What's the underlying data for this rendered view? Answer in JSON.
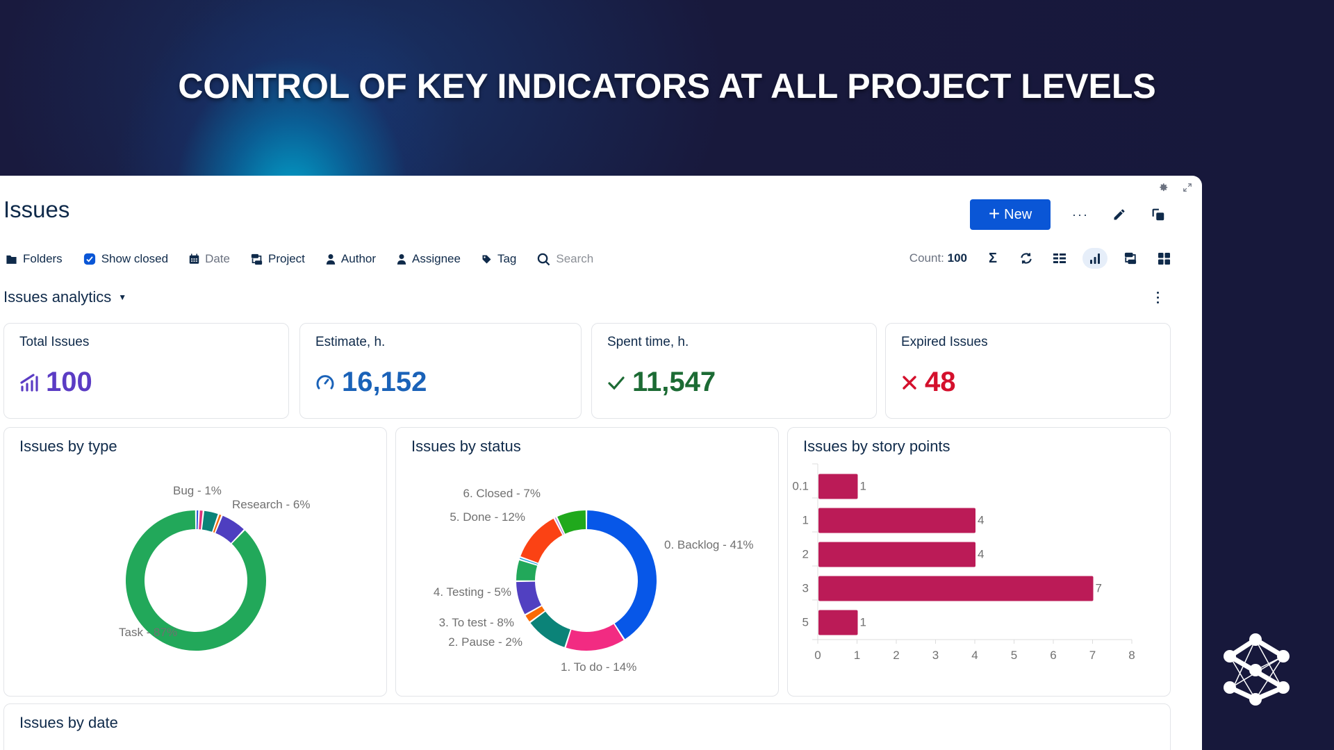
{
  "headline": "CONTROL OF KEY INDICATORS AT ALL PROJECT LEVELS",
  "panel": {
    "title": "Issues",
    "corner_icons": [
      "gear-icon",
      "expand-icon"
    ],
    "new_button": "New",
    "more_label": "···",
    "filters": [
      {
        "label": "Folders",
        "icon": "folder-icon",
        "muted": false
      },
      {
        "label": "Show closed",
        "icon": "checkbox-checked-icon",
        "muted": false,
        "checked": true
      },
      {
        "label": "Date",
        "icon": "calendar-icon",
        "muted": true
      },
      {
        "label": "Project",
        "icon": "project-icon",
        "muted": false
      },
      {
        "label": "Author",
        "icon": "person-icon",
        "muted": false
      },
      {
        "label": "Assignee",
        "icon": "person-icon",
        "muted": false
      },
      {
        "label": "Tag",
        "icon": "tag-icon",
        "muted": false
      }
    ],
    "search_placeholder": "Search",
    "count_label": "Count:",
    "count_value": "100",
    "view_tools": [
      "sum-icon",
      "refresh-icon",
      "list-view-icon",
      "chart-view-icon",
      "board-view-icon",
      "grid-view-icon"
    ],
    "active_view": "chart-view-icon",
    "analytics_label": "Issues analytics"
  },
  "kpis": [
    {
      "title": "Total Issues",
      "value": "100",
      "icon": "trend-bars-icon",
      "color": "#5b3cc4"
    },
    {
      "title": "Estimate, h.",
      "value": "16,152",
      "icon": "gauge-icon",
      "color": "#1a62b8"
    },
    {
      "title": "Spent time, h.",
      "value": "11,547",
      "icon": "check-icon",
      "color": "#1c6b34"
    },
    {
      "title": "Expired Issues",
      "value": "48",
      "icon": "cross-icon",
      "color": "#d4102c"
    }
  ],
  "chart_data": [
    {
      "type": "pie",
      "title": "Issues by type",
      "donut": true,
      "slices": [
        {
          "label": "",
          "value": 0.7,
          "color": "#1f4fd8",
          "show_label": false
        },
        {
          "label": "Bug - 1%",
          "value": 1,
          "color": "#e0317a",
          "show_label": true
        },
        {
          "label": "",
          "value": 3.5,
          "color": "#0b8378",
          "show_label": false
        },
        {
          "label": "",
          "value": 0.8,
          "color": "#f06a0f",
          "show_label": false
        },
        {
          "label": "Research - 6%",
          "value": 6,
          "color": "#4e3ec0",
          "show_label": true
        },
        {
          "label": "Task - 87%",
          "value": 87,
          "color": "#22a85a",
          "show_label": true
        }
      ]
    },
    {
      "type": "pie",
      "title": "Issues by status",
      "donut": true,
      "slices": [
        {
          "label": "0. Backlog - 41%",
          "value": 41,
          "color": "#0757e8"
        },
        {
          "label": "1. To do - 14%",
          "value": 14,
          "color": "#f22b82"
        },
        {
          "label": "",
          "value": 10,
          "color": "#0b8378"
        },
        {
          "label": "2. Pause - 2%",
          "value": 2,
          "color": "#fa6a04"
        },
        {
          "label": "3. To test - 8%",
          "value": 8,
          "color": "#5140c1"
        },
        {
          "label": "4. Testing - 5%",
          "value": 5,
          "color": "#22a85a"
        },
        {
          "label": "",
          "value": 0.6,
          "color": "#1a9ddc"
        },
        {
          "label": "5. Done - 12%",
          "value": 12,
          "color": "#fb4214"
        },
        {
          "label": "",
          "value": 0.6,
          "color": "#b37fdb"
        },
        {
          "label": "6. Closed - 7%",
          "value": 7,
          "color": "#20a91c"
        }
      ]
    },
    {
      "type": "bar",
      "orientation": "horizontal",
      "title": "Issues by story points",
      "categories": [
        "0.1",
        "1",
        "2",
        "3",
        "5"
      ],
      "values": [
        1,
        4,
        4,
        7,
        1
      ],
      "color": "#bb1b57",
      "xlim": [
        0,
        8
      ],
      "xticks": [
        "0",
        "1",
        "2",
        "3",
        "4",
        "5",
        "6",
        "7",
        "8"
      ],
      "data_labels": true
    }
  ],
  "date_card": {
    "title": "Issues by date"
  }
}
